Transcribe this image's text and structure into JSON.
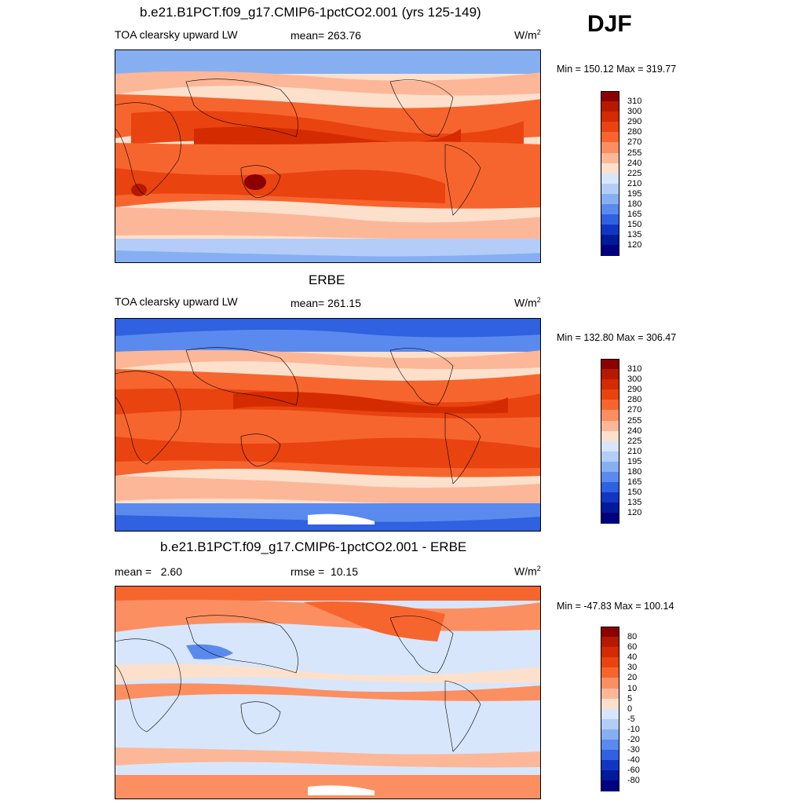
{
  "season": "DJF",
  "panels": [
    {
      "id": "model",
      "title": "b.e21.B1PCT.f09_g17.CMIP6-1pctCO2.001 (yrs 125-149)",
      "left_label": "TOA clearsky upward LW",
      "center_label": "mean= 263.76",
      "units": "W/m",
      "units_sup": "2",
      "minmax": "Min = 150.12 Max = 319.77",
      "colorbar": [
        "310",
        "300",
        "290",
        "280",
        "270",
        "255",
        "240",
        "225",
        "210",
        "195",
        "180",
        "165",
        "150",
        "135",
        "120"
      ],
      "colors": [
        "#8b0000",
        "#b51a00",
        "#d42b00",
        "#e94310",
        "#f7652e",
        "#fb8f61",
        "#fcb798",
        "#fde0cc",
        "#ffffff",
        "#d8e6fb",
        "#b3cdf8",
        "#86aff2",
        "#5a8aee",
        "#2f61e0",
        "#1236c4",
        "#001a99",
        "#000080"
      ]
    },
    {
      "id": "obs",
      "title": "ERBE",
      "left_label": "TOA clearsky upward LW",
      "center_label": "mean= 261.15",
      "units": "W/m",
      "units_sup": "2",
      "minmax": "Min = 132.80 Max = 306.47",
      "colorbar": [
        "310",
        "300",
        "290",
        "280",
        "270",
        "255",
        "240",
        "225",
        "210",
        "195",
        "180",
        "165",
        "150",
        "135",
        "120"
      ]
    },
    {
      "id": "diff",
      "title": "b.e21.B1PCT.f09_g17.CMIP6-1pctCO2.001 - ERBE",
      "left_label": "mean =   2.60",
      "center_label": "rmse =  10.15",
      "units": "W/m",
      "units_sup": "2",
      "minmax": "Min = -47.83 Max = 100.14",
      "colorbar": [
        "80",
        "60",
        "40",
        "30",
        "20",
        "10",
        "5",
        "0",
        "-5",
        "-10",
        "-20",
        "-30",
        "-40",
        "-60",
        "-80"
      ]
    }
  ]
}
